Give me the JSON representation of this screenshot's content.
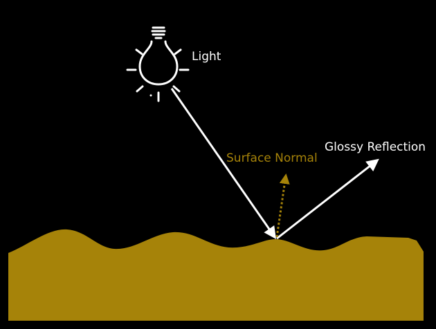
{
  "labels": {
    "light": "Light",
    "surface_normal": "Surface Normal",
    "glossy_reflection": "Glossy Reflection"
  },
  "colors": {
    "background": "#000000",
    "surface": "#a68309",
    "normal": "#a68309",
    "ray": "#ffffff",
    "text": "#ffffff"
  },
  "icons": {
    "light": "light-bulb-icon"
  }
}
